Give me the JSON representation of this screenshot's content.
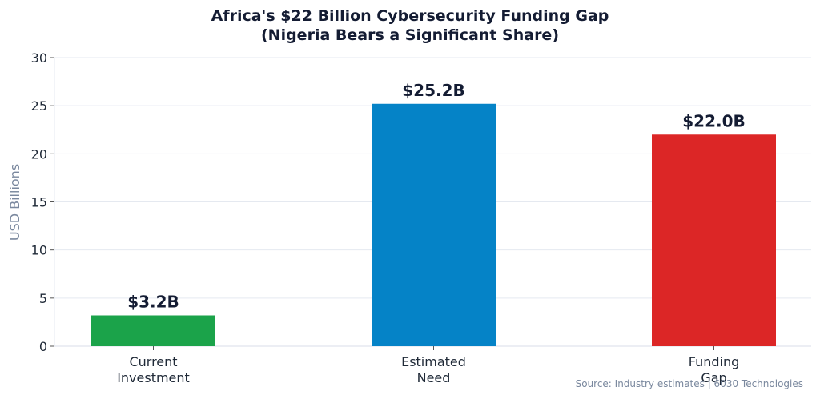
{
  "chart_data": {
    "type": "bar",
    "title": "Africa's $22 Billion Cybersecurity Funding Gap",
    "subtitle": "(Nigeria Bears a Significant Share)",
    "xlabel": "",
    "ylabel": "USD Billions",
    "ylim": [
      0,
      30
    ],
    "yticks": [
      0,
      5,
      10,
      15,
      20,
      25,
      30
    ],
    "grid": true,
    "categories": [
      [
        "Current",
        "Investment"
      ],
      [
        "Estimated",
        "Need"
      ],
      [
        "Funding",
        "Gap"
      ]
    ],
    "values": [
      3.2,
      25.2,
      22.0
    ],
    "data_labels": [
      "$3.2B",
      "$25.2B",
      "$22.0B"
    ],
    "colors": [
      "#1ba34a",
      "#0583c7",
      "#dc2626"
    ],
    "source": "Source: Industry estimates  |  6030 Technologies"
  }
}
